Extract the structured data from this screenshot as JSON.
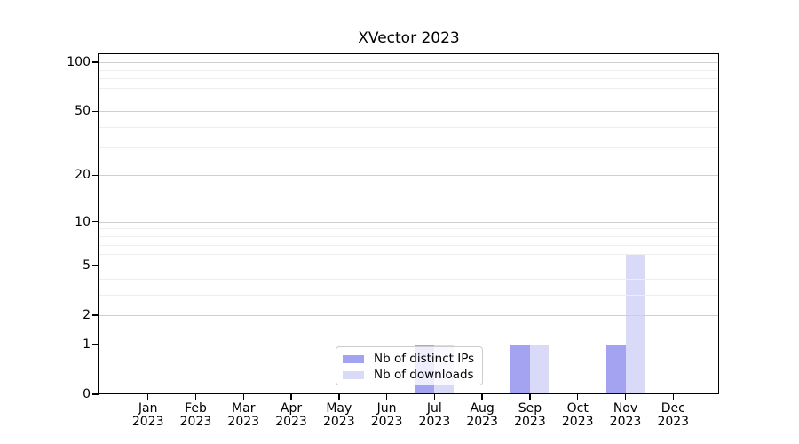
{
  "chart_data": {
    "type": "bar",
    "title": "XVector 2023",
    "categories": [
      "Jan",
      "Feb",
      "Mar",
      "Apr",
      "May",
      "Jun",
      "Jul",
      "Aug",
      "Sep",
      "Oct",
      "Nov",
      "Dec"
    ],
    "category_year": "2023",
    "series": [
      {
        "name": "Nb of distinct IPs",
        "color": "#a3a3f1",
        "values": [
          0,
          0,
          0,
          0,
          0,
          0,
          1,
          0,
          1,
          0,
          1,
          0
        ]
      },
      {
        "name": "Nb of downloads",
        "color": "#d9d9f8",
        "values": [
          0,
          0,
          0,
          0,
          0,
          0,
          1,
          0,
          1,
          0,
          6,
          0
        ]
      }
    ],
    "xlabel": "",
    "ylabel": "",
    "yscale": "log(value+1)",
    "yticks": [
      0,
      1,
      2,
      5,
      10,
      20,
      50,
      100
    ],
    "minor_grid_values": [
      3,
      4,
      6,
      7,
      8,
      9,
      30,
      40,
      60,
      70,
      80,
      90
    ],
    "ylim": [
      0,
      112
    ],
    "grid": true,
    "legend_position": "lower center"
  },
  "colors": {
    "axis": "#000000",
    "text": "#000000",
    "major_grid": "#d0d0d0",
    "minor_grid": "#eeeeee",
    "legend_border": "#cccccc"
  }
}
